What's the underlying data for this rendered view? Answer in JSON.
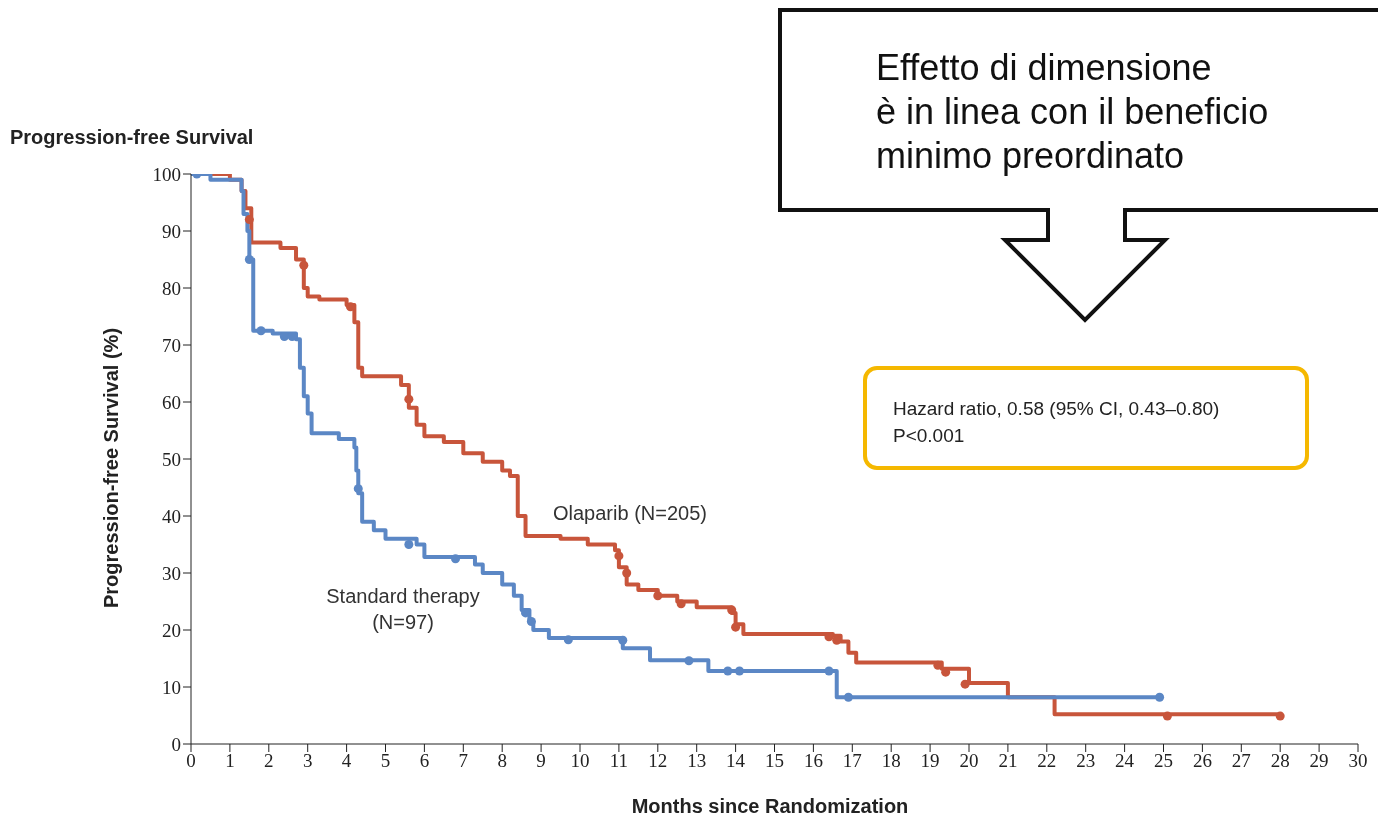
{
  "chart_data": {
    "type": "step",
    "title": "Progression-free Survival",
    "xlabel": "Months since Randomization",
    "ylabel": "Progression-free Survival (%)",
    "xlim": [
      0,
      30
    ],
    "xticks": [
      0,
      1,
      2,
      3,
      4,
      5,
      6,
      7,
      8,
      9,
      10,
      11,
      12,
      13,
      14,
      15,
      16,
      17,
      18,
      19,
      20,
      21,
      22,
      23,
      24,
      25,
      26,
      27,
      28,
      29,
      30
    ],
    "ylim": [
      0,
      100
    ],
    "yticks": [
      0,
      10,
      20,
      30,
      40,
      50,
      60,
      70,
      80,
      90,
      100
    ],
    "grid": false,
    "legend": false,
    "line_style": "solid",
    "annotations": [
      "Effetto di dimensione\nè in linea con il beneficio\nminimo preordinato",
      "Hazard ratio, 0.58 (95% CI, 0.43–0.80)\nP<0.001"
    ],
    "series": [
      {
        "name": "Olaparib (N=205)",
        "color": "#c8553b",
        "x": [
          0,
          1.0,
          1.3,
          1.4,
          1.55,
          2.3,
          2.7,
          2.9,
          3.0,
          3.3,
          4.0,
          4.2,
          4.3,
          4.4,
          5.4,
          5.6,
          5.8,
          6.0,
          6.5,
          7.0,
          7.5,
          8.0,
          8.2,
          8.4,
          8.6,
          9.5,
          10.2,
          10.9,
          11.0,
          11.2,
          11.5,
          12.0,
          12.5,
          13.0,
          13.9,
          14.0,
          14.2,
          16.5,
          16.7,
          16.9,
          17.1,
          19.3,
          20.0,
          21.0,
          22.2,
          28.0
        ],
        "values": [
          100,
          99,
          97,
          94,
          88,
          87,
          85,
          80,
          78.5,
          78,
          77,
          74,
          66,
          64.5,
          63,
          59,
          56,
          54,
          53,
          51,
          49.5,
          48,
          47,
          40,
          36.5,
          36,
          35,
          34,
          31,
          28,
          27,
          26,
          25,
          24,
          23,
          21,
          19.3,
          19,
          18,
          16,
          14.3,
          13.2,
          10.7,
          8.2,
          5.2,
          5.2
        ]
      },
      {
        "name": "Standard therapy\n(N=97)",
        "color": "#5b87c5",
        "x": [
          0,
          0.5,
          1.3,
          1.35,
          1.45,
          1.5,
          1.6,
          2.1,
          2.7,
          2.8,
          2.9,
          3.0,
          3.1,
          3.8,
          4.2,
          4.25,
          4.3,
          4.4,
          4.7,
          5.0,
          5.8,
          6.0,
          7.3,
          7.5,
          8.0,
          8.3,
          8.5,
          8.7,
          8.8,
          9.2,
          11.1,
          11.8,
          13.3,
          16.6,
          24.9
        ],
        "values": [
          100,
          99,
          97,
          93,
          90,
          85,
          72.5,
          72,
          71,
          66,
          61,
          58,
          54.5,
          53.5,
          52,
          48,
          44,
          39,
          37.5,
          36,
          35,
          32.8,
          31.5,
          30,
          28,
          26,
          23.5,
          21.5,
          20,
          18.6,
          16.8,
          14.7,
          12.8,
          8.2,
          8.2
        ]
      },
      {
        "type": "scatter",
        "marker": "circle",
        "color": "#c8553b",
        "x": [
          1.5,
          2.9,
          4.1,
          5.6,
          11.0,
          11.2,
          12.0,
          12.6,
          13.9,
          14.0,
          16.4,
          16.6,
          19.2,
          19.4,
          19.9,
          25.1,
          28.0
        ],
        "values": [
          92,
          84,
          76.7,
          60.5,
          33,
          30,
          26,
          24.6,
          23.5,
          20.5,
          18.8,
          18.2,
          13.8,
          12.6,
          10.5,
          4.9,
          4.9
        ]
      },
      {
        "type": "scatter",
        "marker": "circle",
        "color": "#5b87c5",
        "x": [
          0.15,
          1.5,
          1.8,
          2.4,
          2.6,
          4.3,
          5.6,
          6.8,
          8.6,
          8.75,
          9.7,
          11.1,
          12.8,
          13.8,
          14.1,
          16.4,
          16.9,
          24.9
        ],
        "values": [
          100,
          85,
          72.5,
          71.5,
          71.5,
          44.8,
          35,
          32.5,
          23,
          21.5,
          18.3,
          18.2,
          14.6,
          12.8,
          12.8,
          12.8,
          8.2,
          8.2
        ]
      }
    ]
  }
}
